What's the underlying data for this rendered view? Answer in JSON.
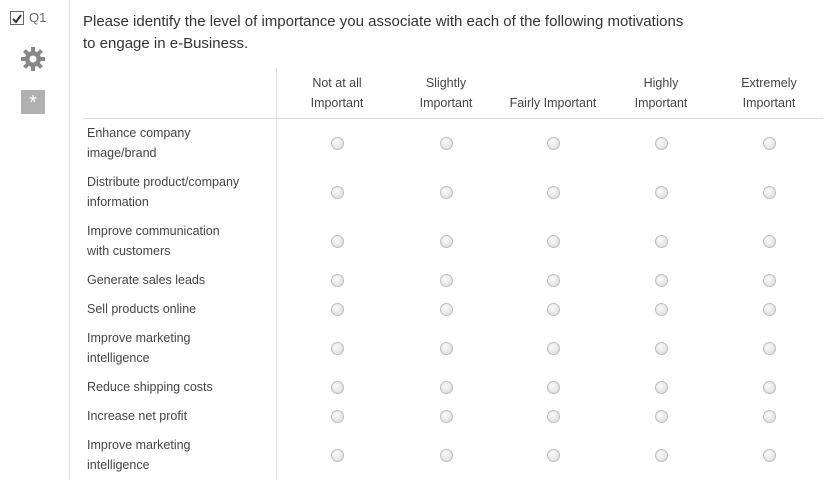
{
  "question": {
    "id": "Q1",
    "text": [
      "Please identify the level of importance you associate with each of the following motivations",
      "to engage in e-Business."
    ]
  },
  "columns": [
    [
      "Not at all",
      "Important"
    ],
    [
      "Slightly",
      "Important"
    ],
    [
      "Fairly Important"
    ],
    [
      "Highly",
      "Important"
    ],
    [
      "Extremely",
      "Important"
    ]
  ],
  "rows": [
    [
      "Enhance company",
      "image/brand"
    ],
    [
      "Distribute product/company",
      "information"
    ],
    [
      "Improve communication",
      "with customers"
    ],
    [
      "Generate sales leads"
    ],
    [
      "Sell products online"
    ],
    [
      "Improve marketing",
      "intelligence"
    ],
    [
      "Reduce shipping costs"
    ],
    [
      "Increase net profit"
    ],
    [
      "Improve marketing",
      "intelligence"
    ]
  ]
}
